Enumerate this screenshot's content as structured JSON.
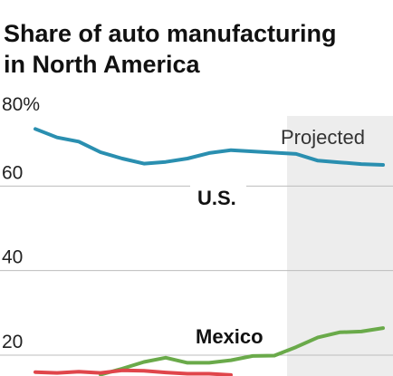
{
  "chart_data": {
    "type": "line",
    "title_lines": [
      "Share of auto manufacturing",
      "in North America"
    ],
    "xlabel": "",
    "ylabel": "",
    "ylim": [
      15,
      80
    ],
    "y_ticks": [
      {
        "value": 80,
        "label": "80%"
      },
      {
        "value": 60,
        "label": "60"
      },
      {
        "value": 40,
        "label": "40"
      },
      {
        "value": 20,
        "label": "20"
      }
    ],
    "grid": "horizontal",
    "projected_label": "Projected",
    "projected_start_index": 12,
    "n_points": 17,
    "series": [
      {
        "name": "U.S.",
        "color": "#2a8fb0",
        "start_index": 0,
        "values": [
          73.5,
          71.5,
          70.5,
          68,
          66.5,
          65.3,
          65.7,
          66.5,
          67.8,
          68.5,
          68.2,
          67.9,
          67.6,
          66,
          65.6,
          65.2,
          65
        ]
      },
      {
        "name": "Mexico",
        "color": "#6aaa4a",
        "start_index": 3,
        "values": [
          15.4,
          16.8,
          18.4,
          19.4,
          18.2,
          18.2,
          18.8,
          19.8,
          19.9,
          21.9,
          24.2,
          25.4,
          25.6,
          26.4
        ]
      },
      {
        "name": "",
        "color": "#e0464b",
        "start_index": 0,
        "values": [
          16,
          15.8,
          16.1,
          15.8,
          16.4,
          16.3,
          15.9,
          15.6,
          15.6,
          15.3
        ]
      }
    ]
  },
  "labels": {
    "us": "U.S.",
    "mexico": "Mexico"
  }
}
